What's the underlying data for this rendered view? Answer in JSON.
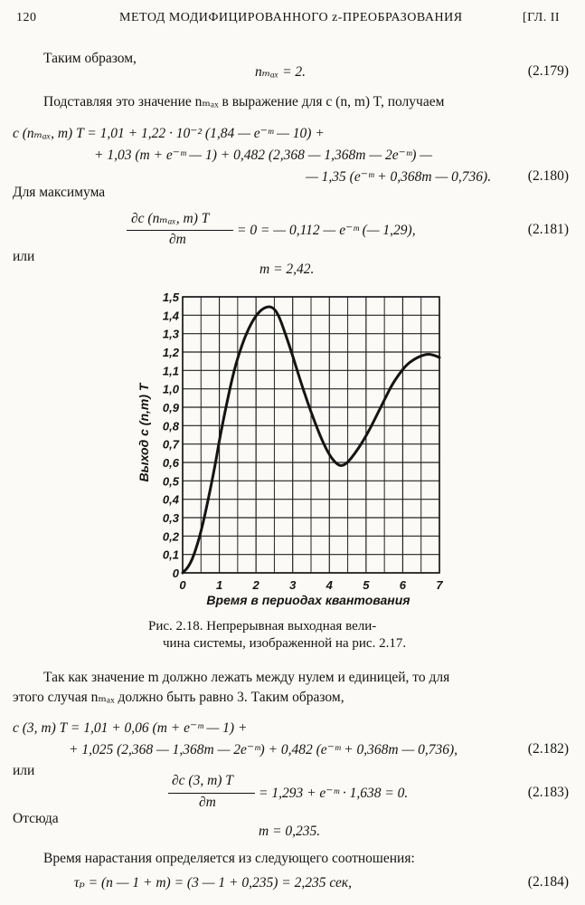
{
  "header": {
    "page_number": "120",
    "title": "МЕТОД МОДИФИЦИРОВАННОГО z-ПРЕОБРАЗОВАНИЯ",
    "chapter": "[ГЛ. II"
  },
  "text": {
    "p1": "Таким образом,",
    "eq179": "nₘₐₓ = 2.",
    "eq179_no": "(2.179)",
    "p2": "Подставляя это значение nₘₐₓ в выражение для c (n, m) T, получаем",
    "eq180_l1": "c (nₘₐₓ, m) T = 1,01 + 1,22 · 10⁻² (1,84 — e⁻ᵐ — 10) +",
    "eq180_l2": "+ 1,03 (m + e⁻ᵐ — 1) + 0,482 (2,368 — 1,368m — 2e⁻ᵐ) —",
    "eq180_l3": "— 1,35 (e⁻ᵐ + 0,368m — 0,736).",
    "eq180_no": "(2.180)",
    "p3": "Для максимума",
    "eq181_num": "∂c (nₘₐₓ, m) T",
    "eq181_den": "∂m",
    "eq181_rest": "= 0 = — 0,112 — e⁻ᵐ (— 1,29),",
    "eq181_no": "(2.181)",
    "p4": "или",
    "eq_m1": "m = 2,42.",
    "caption_l1": "Рис. 2.18. Непрерывная выходная вели-",
    "caption_l2": "чина системы, изображенной на рис. 2.17.",
    "p5_l1": "Так как значение m должно лежать между нулем и единицей, то для",
    "p5_l2": "этого случая nₘₐₓ должно быть равно 3. Таким образом,",
    "eq182_l1": "c (3, m) T = 1,01 + 0,06 (m + e⁻ᵐ — 1) +",
    "eq182_l2": "+ 1,025 (2,368 — 1,368m — 2e⁻ᵐ) + 0,482 (e⁻ᵐ + 0,368m — 0,736),",
    "eq182_no": "(2.182)",
    "p6": "или",
    "eq183_num": "∂c (3, m) T",
    "eq183_den": "∂m",
    "eq183_rest": "= 1,293 + e⁻ᵐ · 1,638 = 0.",
    "eq183_no": "(2.183)",
    "p7": "Отсюда",
    "eq_m2": "m = 0,235.",
    "p8": "Время нарастания определяется из следующего соотношения:",
    "eq184": "τₚ = (n — 1 + m) = (3 — 1 + 0,235) = 2,235 сек,",
    "eq184_no": "(2.184)"
  },
  "chart_data": {
    "type": "line",
    "xlabel": "Время в периодах квантования",
    "ylabel": "Выход c (n,m) T",
    "xlim": [
      0,
      7
    ],
    "ylim": [
      0,
      1.5
    ],
    "x_ticks": [
      "0",
      "1",
      "2",
      "3",
      "4",
      "5",
      "6",
      "7"
    ],
    "y_ticks": [
      "0",
      "0,1",
      "0,2",
      "0,3",
      "0,4",
      "0,5",
      "0,6",
      "0,7",
      "0,8",
      "0,9",
      "1,0",
      "1,1",
      "1,2",
      "1,3",
      "1,4",
      "1,5"
    ],
    "grid": true,
    "series": [
      {
        "x": [
          0,
          0.15,
          0.3,
          0.5,
          0.7,
          0.9,
          1.0,
          1.2,
          1.4,
          1.6,
          1.8,
          2.0,
          2.2,
          2.42,
          2.6,
          2.8,
          3.0,
          3.2,
          3.4,
          3.6,
          3.8,
          4.0,
          4.2,
          4.35,
          4.5,
          4.7,
          4.9,
          5.1,
          5.3,
          5.5,
          5.7,
          5.9,
          6.1,
          6.3,
          6.5,
          6.7,
          6.9,
          7.0
        ],
        "y": [
          0.0,
          0.03,
          0.09,
          0.22,
          0.4,
          0.6,
          0.72,
          0.92,
          1.1,
          1.23,
          1.33,
          1.4,
          1.44,
          1.45,
          1.41,
          1.3,
          1.18,
          1.05,
          0.93,
          0.82,
          0.72,
          0.64,
          0.59,
          0.58,
          0.6,
          0.65,
          0.71,
          0.78,
          0.86,
          0.94,
          1.02,
          1.08,
          1.13,
          1.16,
          1.18,
          1.19,
          1.18,
          1.17
        ]
      }
    ]
  }
}
